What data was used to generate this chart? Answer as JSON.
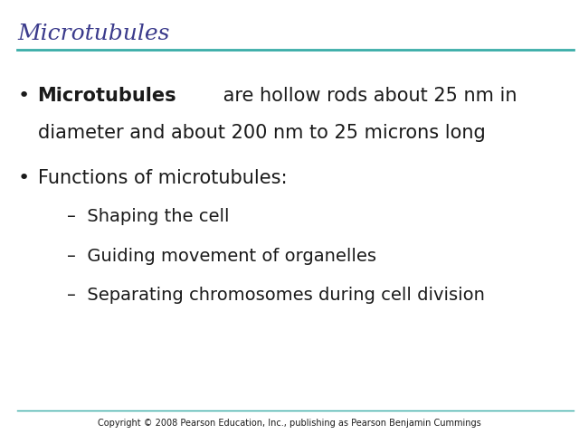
{
  "title": "Microtubules",
  "title_color": "#3B3B8C",
  "title_fontsize": 18,
  "title_style": "italic",
  "title_font": "serif",
  "separator_color": "#3AADA8",
  "bullet1_bold": "Microtubules",
  "bullet1_rest_line1": " are hollow rods about 25 nm in",
  "bullet1_rest_line2": "diameter and about 200 nm to 25 microns long",
  "bullet2_text": "Functions of microtubules:",
  "sub1_text": "–  Shaping the cell",
  "sub2_text": "–  Guiding movement of organelles",
  "sub3_text": "–  Separating chromosomes during cell division",
  "main_fontsize": 15,
  "sub_fontsize": 14,
  "text_color": "#1a1a1a",
  "copyright_text": "Copyright © 2008 Pearson Education, Inc., publishing as Pearson Benjamin Cummings",
  "copyright_fontsize": 7,
  "bg_color": "#ffffff"
}
